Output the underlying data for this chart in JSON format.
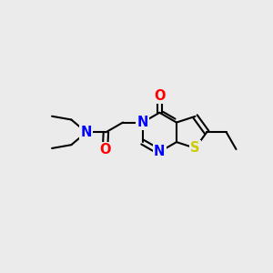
{
  "background_color": "#ebebeb",
  "atom_colors": {
    "C": "#000000",
    "N": "#0000ff",
    "O": "#ff0000",
    "S": "#cccc00"
  },
  "font_size": 10.5,
  "bond_color": "#000000",
  "bond_lw": 1.5
}
